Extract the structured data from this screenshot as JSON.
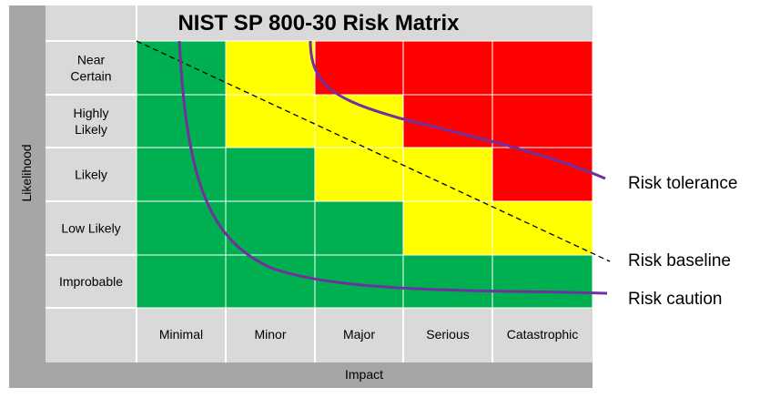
{
  "title": "NIST SP 800-30 Risk Matrix",
  "likelihood_axis_label": "Likelihood",
  "impact_axis_label": "Impact",
  "likelihood_levels": [
    [
      "Near",
      "Certain"
    ],
    [
      "Highly",
      "Likely"
    ],
    [
      "Likely"
    ],
    [
      "Low Likely"
    ],
    [
      "Improbable"
    ]
  ],
  "impact_levels": [
    "Minimal",
    "Minor",
    "Major",
    "Serious",
    "Catastrophic"
  ],
  "matrix_cells": [
    [
      "low",
      "medium",
      "high",
      "high",
      "high"
    ],
    [
      "low",
      "medium",
      "medium",
      "high",
      "high"
    ],
    [
      "low",
      "low",
      "medium",
      "medium",
      "high"
    ],
    [
      "low",
      "low",
      "low",
      "medium",
      "medium"
    ],
    [
      "low",
      "low",
      "low",
      "low",
      "low"
    ]
  ],
  "curves": {
    "tolerance": "Risk tolerance",
    "baseline": "Risk baseline",
    "caution": "Risk caution"
  },
  "colors": {
    "low": "#00B050",
    "medium": "#FFFF00",
    "high": "#FF0000",
    "curve": "#7030A0",
    "header_grey": "#D9D9D9",
    "axis_grey": "#A6A6A6"
  }
}
